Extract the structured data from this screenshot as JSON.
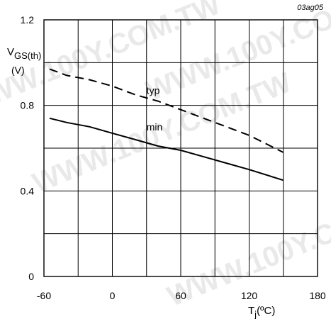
{
  "watermark_text": "WWW.100Y.COM.TW",
  "chart_data": {
    "type": "line",
    "figure_id": "03ag05",
    "ylabel_main": "V",
    "ylabel_sub": "GS(th)",
    "yunit": "(V)",
    "xlabel_main": "T",
    "xlabel_sub": "j",
    "xunit": "(ºC)",
    "xlim": [
      -60,
      180
    ],
    "ylim": [
      0,
      1.2
    ],
    "x_major_ticks": [
      -60,
      0,
      60,
      120,
      180
    ],
    "y_major_ticks": [
      0,
      0.4,
      0.8,
      1.2
    ],
    "y_tick_labels": [
      "0",
      "0.4",
      "0.8",
      "1.2"
    ],
    "grid": true,
    "series": [
      {
        "name": "typ",
        "style": "dashed",
        "color": "#000000",
        "x": [
          -55,
          -40,
          -20,
          0,
          20,
          40,
          60,
          80,
          100,
          120,
          150
        ],
        "y": [
          0.97,
          0.94,
          0.92,
          0.89,
          0.85,
          0.82,
          0.78,
          0.74,
          0.7,
          0.66,
          0.58
        ]
      },
      {
        "name": "min",
        "style": "solid",
        "color": "#000000",
        "x": [
          -55,
          -40,
          -20,
          0,
          20,
          40,
          60,
          80,
          100,
          120,
          150
        ],
        "y": [
          0.74,
          0.72,
          0.7,
          0.67,
          0.64,
          0.61,
          0.59,
          0.56,
          0.53,
          0.5,
          0.45
        ]
      }
    ],
    "series_labels": [
      {
        "text": "typ",
        "x": 30,
        "y": 0.87
      },
      {
        "text": "min",
        "x": 30,
        "y": 0.7
      }
    ]
  }
}
